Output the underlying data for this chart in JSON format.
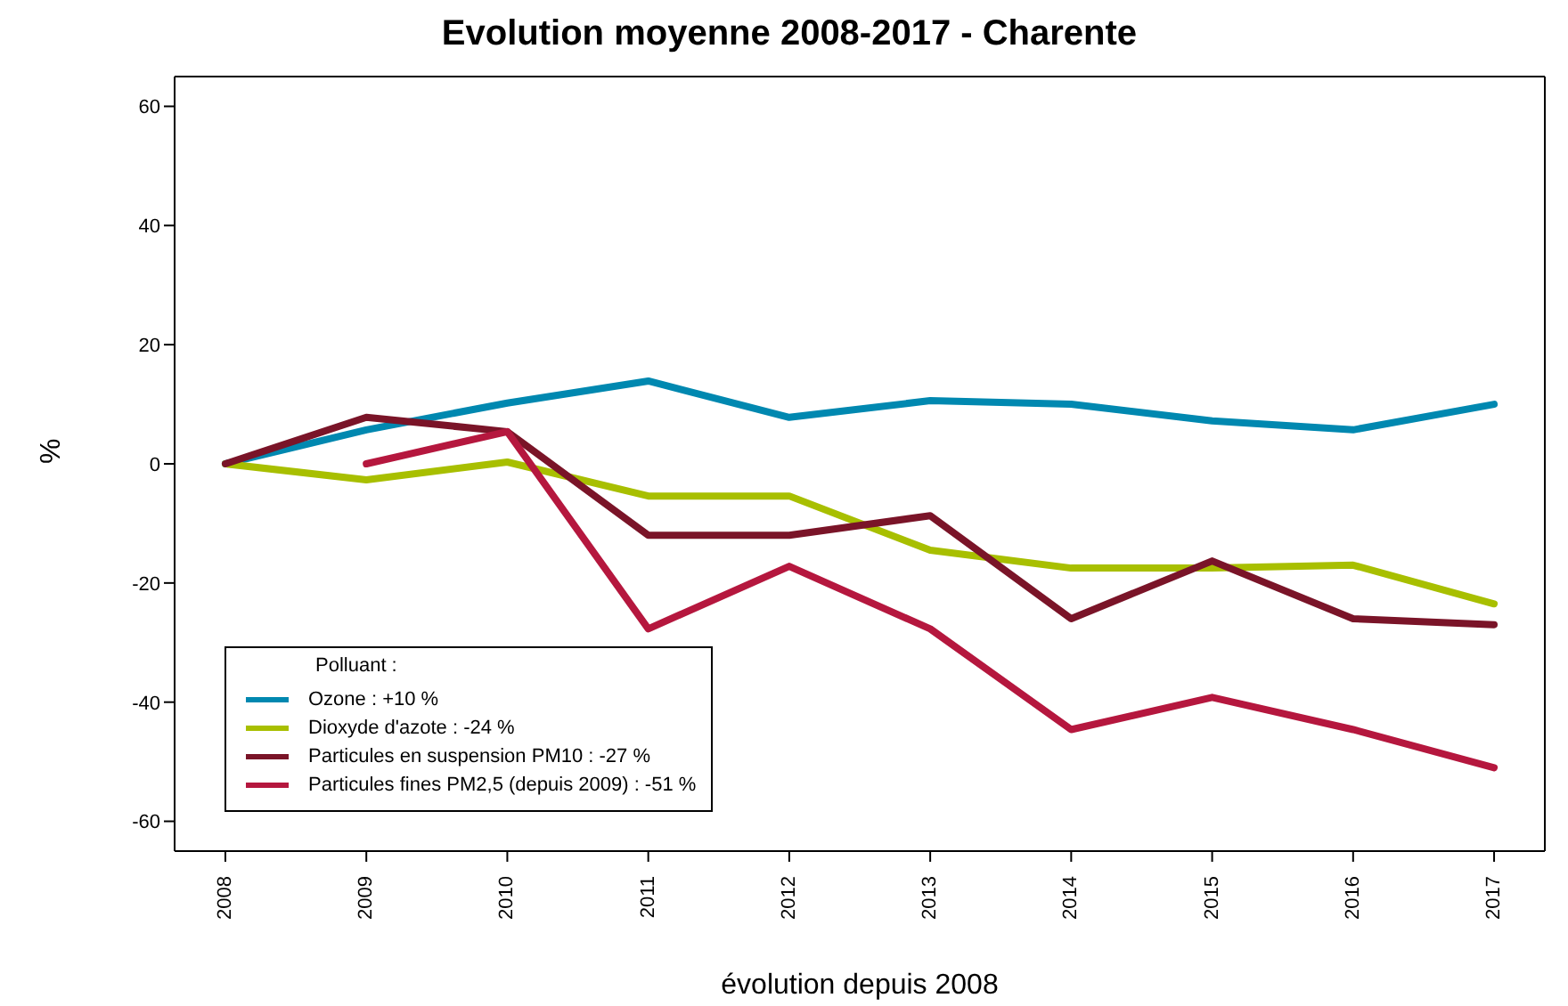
{
  "chart_data": {
    "type": "line",
    "title": "Evolution moyenne 2008-2017 - Charente",
    "xlabel": "évolution depuis 2008",
    "ylabel": "%",
    "legend_title": "Polluant :",
    "x": [
      2008,
      2009,
      2010,
      2011,
      2012,
      2013,
      2014,
      2015,
      2016,
      2017
    ],
    "series": [
      {
        "name": "Ozone : +10 %",
        "color": "#0088b0",
        "values": [
          0,
          5.7,
          10.2,
          13.9,
          7.8,
          10.6,
          10,
          7.2,
          5.7,
          10
        ]
      },
      {
        "name": "Dioxyde d'azote : -24 %",
        "color": "#a8bf00",
        "values": [
          0,
          -2.7,
          0.3,
          -5.4,
          -5.4,
          -14.5,
          -17.5,
          -17.5,
          -17,
          -23.5
        ]
      },
      {
        "name": "Particules en suspension PM10 : -27 %",
        "color": "#7a1428",
        "values": [
          0,
          7.8,
          5.4,
          -12,
          -12,
          -8.7,
          -26,
          -16.3,
          -26,
          -27
        ]
      },
      {
        "name": "Particules fines PM2,5 (depuis 2009) : -51 %",
        "color": "#b5173e",
        "values": [
          null,
          0,
          5.4,
          -27.7,
          -17.2,
          -27.7,
          -44.6,
          -39.2,
          -44.6,
          -51
        ]
      }
    ],
    "xlim": [
      2007.64,
      2017.36
    ],
    "xticks": [
      2008,
      2009,
      2010,
      2011,
      2012,
      2013,
      2014,
      2015,
      2016,
      2017
    ],
    "ylim": [
      -65,
      65
    ],
    "yticks": [
      -60,
      -40,
      -20,
      0,
      20,
      40,
      60
    ],
    "grid": false,
    "legend": "bottom left",
    "marker": "none",
    "line_style": "solid"
  }
}
